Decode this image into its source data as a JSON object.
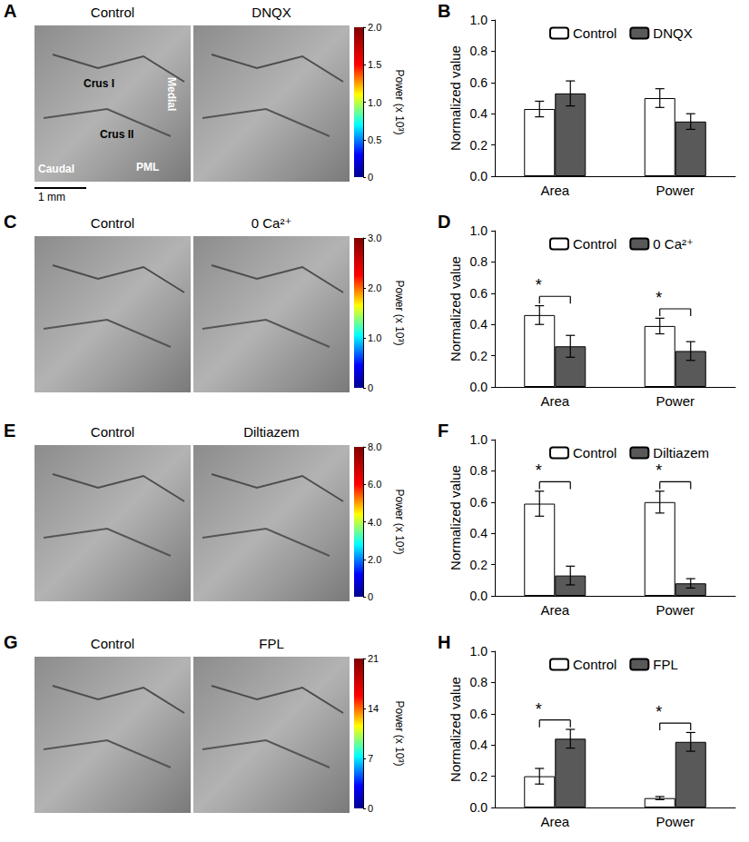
{
  "panels": [
    {
      "label": "A",
      "titles": [
        "Control",
        "DNQX"
      ],
      "annotations": [
        "Crus I",
        "Crus II",
        "PML",
        "Medial",
        "Caudal"
      ],
      "scale_bar": "1 mm",
      "colorbar": {
        "title": "Power (x 10³)",
        "ylim": [
          0,
          2
        ],
        "yticks": [
          0,
          0.5,
          {
            "value": 1,
            "label": "1.0"
          },
          1.5,
          {
            "value": 2,
            "label": "2.0"
          }
        ]
      }
    },
    {
      "label": "C",
      "titles": [
        "Control",
        "0 Ca²⁺"
      ],
      "colorbar": {
        "title": "Power (x 10³)",
        "ylim": [
          0,
          3
        ],
        "yticks": [
          0,
          {
            "value": 1,
            "label": "1.0"
          },
          {
            "value": 2,
            "label": "2.0"
          },
          {
            "value": 3,
            "label": "3.0"
          }
        ]
      }
    },
    {
      "label": "E",
      "titles": [
        "Control",
        "Diltiazem"
      ],
      "colorbar": {
        "title": "Power (x 10³)",
        "ylim": [
          0,
          8
        ],
        "yticks": [
          0,
          {
            "value": 2,
            "label": "2.0"
          },
          {
            "value": 4,
            "label": "4.0"
          },
          {
            "value": 6,
            "label": "6.0"
          },
          {
            "value": 8,
            "label": "8.0"
          }
        ]
      }
    },
    {
      "label": "G",
      "titles": [
        "Control",
        "FPL"
      ],
      "colorbar": {
        "title": "Power (x 10³)",
        "ylim": [
          0,
          21
        ],
        "yticks": [
          0,
          7,
          14,
          21
        ]
      }
    }
  ],
  "chart_data": [
    {
      "type": "bar",
      "title": "B",
      "ylabel": "Normalized value",
      "categories": [
        "Area",
        "Power"
      ],
      "ylim": [
        0,
        1
      ],
      "yticks": [
        {
          "value": 0,
          "label": "0.0"
        },
        0.2,
        0.4,
        0.6,
        0.8,
        {
          "value": 1,
          "label": "1.0"
        }
      ],
      "legend": "top",
      "series": [
        {
          "name": "Control",
          "color": "#ffffff",
          "values": [
            0.43,
            0.5
          ],
          "errors": [
            0.05,
            0.06
          ]
        },
        {
          "name": "DNQX",
          "color": "#595959",
          "values": [
            0.53,
            0.35
          ],
          "errors": [
            0.08,
            0.05
          ]
        }
      ],
      "significance": [
        null,
        null
      ]
    },
    {
      "type": "bar",
      "title": "D",
      "ylabel": "Normalized value",
      "categories": [
        "Area",
        "Power"
      ],
      "ylim": [
        0,
        1
      ],
      "yticks": [
        {
          "value": 0,
          "label": "0.0"
        },
        0.2,
        0.4,
        0.6,
        0.8,
        {
          "value": 1,
          "label": "1.0"
        }
      ],
      "legend": "top",
      "series": [
        {
          "name": "Control",
          "color": "#ffffff",
          "values": [
            0.46,
            0.39
          ],
          "errors": [
            0.06,
            0.05
          ]
        },
        {
          "name": "0 Ca²⁺",
          "color": "#595959",
          "values": [
            0.26,
            0.23
          ],
          "errors": [
            0.07,
            0.06
          ]
        }
      ],
      "significance": [
        "*",
        "*"
      ]
    },
    {
      "type": "bar",
      "title": "F",
      "ylabel": "Normalized value",
      "categories": [
        "Area",
        "Power"
      ],
      "ylim": [
        0,
        1
      ],
      "yticks": [
        {
          "value": 0,
          "label": "0.0"
        },
        0.2,
        0.4,
        0.6,
        0.8,
        {
          "value": 1,
          "label": "1.0"
        }
      ],
      "legend": "top",
      "series": [
        {
          "name": "Control",
          "color": "#ffffff",
          "values": [
            0.59,
            0.6
          ],
          "errors": [
            0.08,
            0.07
          ]
        },
        {
          "name": "Diltiazem",
          "color": "#595959",
          "values": [
            0.13,
            0.08
          ],
          "errors": [
            0.06,
            0.03
          ]
        }
      ],
      "significance": [
        "*",
        "*"
      ]
    },
    {
      "type": "bar",
      "title": "H",
      "ylabel": "Normalized value",
      "categories": [
        "Area",
        "Power"
      ],
      "ylim": [
        0,
        1
      ],
      "yticks": [
        {
          "value": 0,
          "label": "0.0"
        },
        0.2,
        0.4,
        0.6,
        0.8,
        {
          "value": 1,
          "label": "1.0"
        }
      ],
      "legend": "top",
      "series": [
        {
          "name": "Control",
          "color": "#ffffff",
          "values": [
            0.2,
            0.06
          ],
          "errors": [
            0.05,
            0.01
          ]
        },
        {
          "name": "FPL",
          "color": "#595959",
          "values": [
            0.44,
            0.42
          ],
          "errors": [
            0.06,
            0.06
          ]
        }
      ],
      "significance": [
        "*",
        "*"
      ]
    }
  ]
}
